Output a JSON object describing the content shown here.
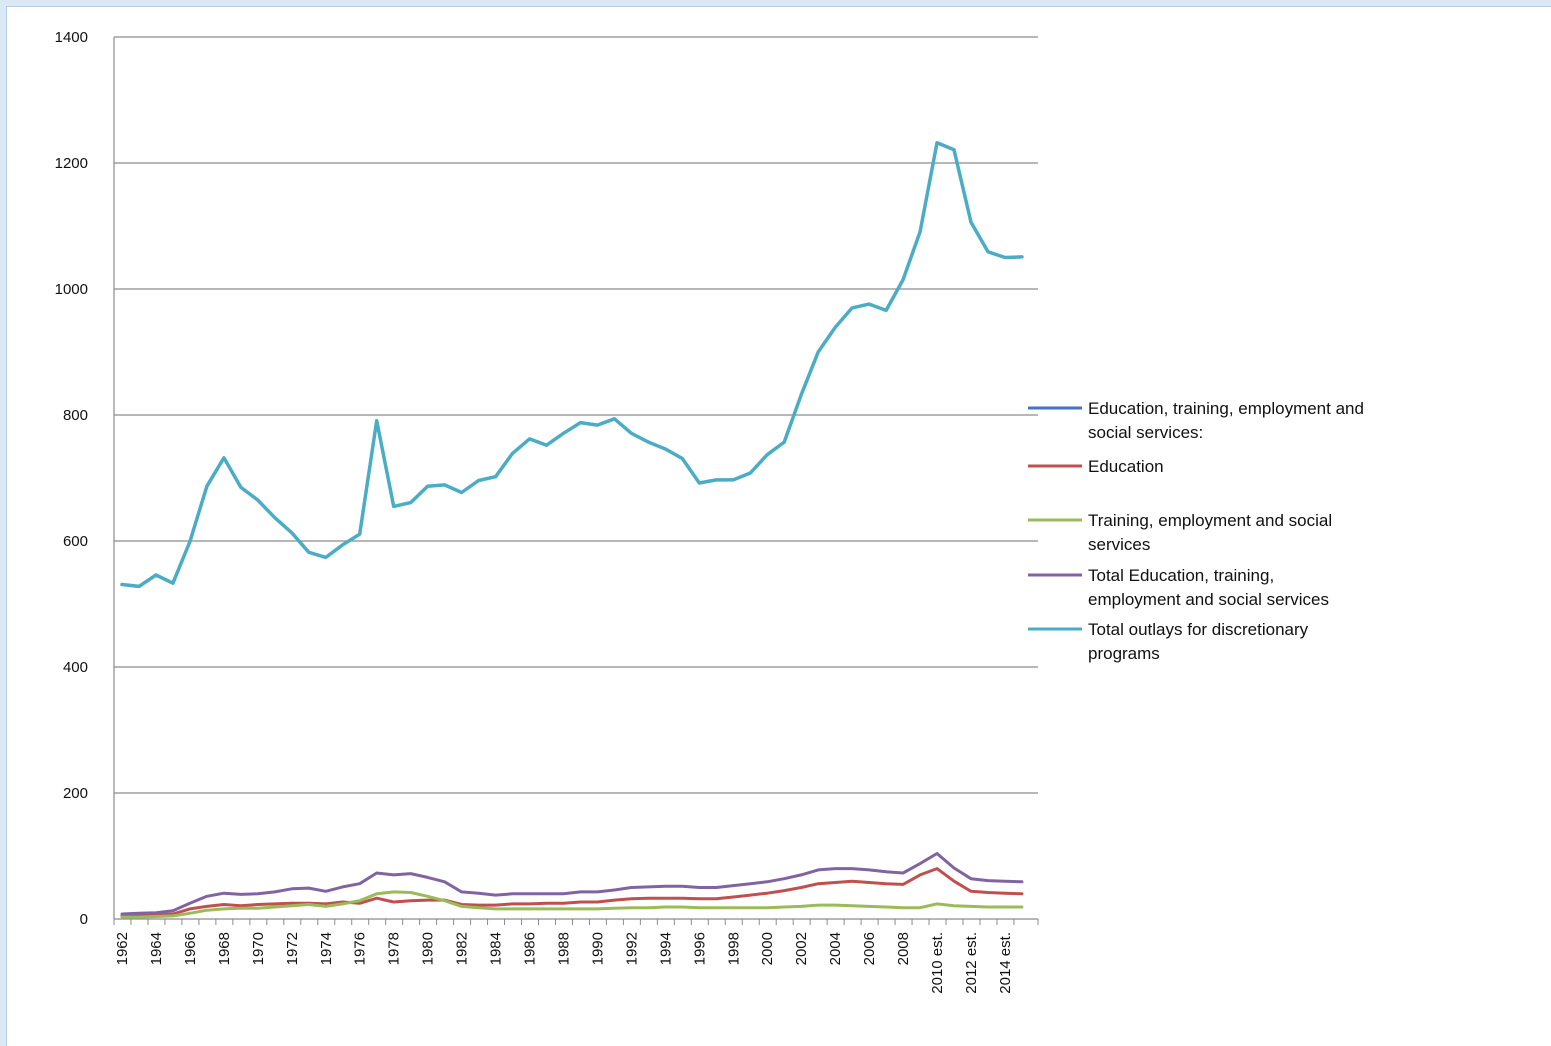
{
  "chart_data": {
    "type": "line",
    "title": "",
    "xlabel": "",
    "ylabel": "",
    "ylim": [
      0,
      1400
    ],
    "yticks": [
      0,
      200,
      400,
      600,
      800,
      1000,
      1200,
      1400
    ],
    "grid": true,
    "legend_position": "right",
    "x": [
      "1962",
      "1963",
      "1964",
      "1965",
      "1966",
      "1967",
      "1968",
      "1969",
      "1970",
      "1971",
      "1972",
      "1973",
      "1974",
      "1975",
      "1976",
      "1977",
      "1978",
      "1979",
      "1980",
      "1981",
      "1982",
      "1983",
      "1984",
      "1985",
      "1986",
      "1987",
      "1988",
      "1989",
      "1990",
      "1991",
      "1992",
      "1993",
      "1994",
      "1995",
      "1996",
      "1997",
      "1998",
      "1999",
      "2000",
      "2001",
      "2002",
      "2003",
      "2004",
      "2005",
      "2006",
      "2007",
      "2008",
      "2009",
      "2010 est.",
      "2011 est.",
      "2012 est.",
      "2013 est.",
      "2014 est.",
      "2015 est."
    ],
    "xtick_labels": [
      "1962",
      "1964",
      "1966",
      "1968",
      "1970",
      "1972",
      "1974",
      "1976",
      "1978",
      "1980",
      "1982",
      "1984",
      "1986",
      "1988",
      "1990",
      "1992",
      "1994",
      "1996",
      "1998",
      "2000",
      "2002",
      "2004",
      "2006",
      "2008",
      "2010 est.",
      "2012 est.",
      "2014 est."
    ],
    "series": [
      {
        "name": "Education, training, employment and social services:",
        "color": "#4472c4",
        "values": [
          null,
          null,
          null,
          null,
          null,
          null,
          null,
          null,
          null,
          null,
          null,
          null,
          null,
          null,
          null,
          null,
          null,
          null,
          null,
          null,
          null,
          null,
          null,
          null,
          null,
          null,
          null,
          null,
          null,
          null,
          null,
          null,
          null,
          null,
          null,
          null,
          null,
          null,
          null,
          null,
          null,
          null,
          null,
          null,
          null,
          null,
          null,
          null,
          null,
          null,
          null,
          null,
          null,
          null
        ]
      },
      {
        "name": "Education",
        "color": "#c0504d",
        "values": [
          5,
          6,
          6,
          8,
          16,
          20,
          23,
          21,
          23,
          24,
          25,
          25,
          24,
          27,
          25,
          33,
          27,
          29,
          30,
          30,
          23,
          22,
          22,
          24,
          24,
          25,
          25,
          27,
          27,
          30,
          32,
          33,
          33,
          33,
          32,
          32,
          35,
          38,
          41,
          45,
          50,
          56,
          58,
          60,
          58,
          56,
          55,
          70,
          80,
          60,
          44,
          42,
          41,
          40
        ]
      },
      {
        "name": "Training, employment and social services",
        "color": "#9bbb59",
        "values": [
          3,
          3,
          4,
          5,
          9,
          14,
          16,
          17,
          17,
          19,
          21,
          23,
          20,
          24,
          29,
          40,
          43,
          42,
          36,
          29,
          20,
          18,
          16,
          16,
          16,
          16,
          16,
          16,
          16,
          17,
          18,
          18,
          19,
          19,
          18,
          18,
          18,
          18,
          18,
          19,
          20,
          22,
          22,
          21,
          20,
          19,
          18,
          18,
          24,
          21,
          20,
          19,
          19,
          19
        ]
      },
      {
        "name": "Total Education, training, employment and social services",
        "color": "#8064a2",
        "values": [
          8,
          9,
          10,
          13,
          25,
          36,
          41,
          39,
          40,
          43,
          48,
          49,
          44,
          51,
          56,
          73,
          70,
          72,
          66,
          59,
          43,
          41,
          38,
          40,
          40,
          40,
          40,
          43,
          43,
          46,
          50,
          51,
          52,
          52,
          50,
          50,
          53,
          56,
          59,
          64,
          70,
          78,
          80,
          80,
          78,
          75,
          73,
          88,
          104,
          81,
          64,
          61,
          60,
          59
        ]
      },
      {
        "name": "Total outlays for discretionary programs",
        "color": "#4bacc6",
        "values": [
          531,
          528,
          546,
          533,
          599,
          687,
          732,
          685,
          665,
          637,
          613,
          582,
          574,
          594,
          611,
          791,
          655,
          661,
          687,
          689,
          677,
          696,
          702,
          739,
          762,
          752,
          771,
          788,
          784,
          794,
          771,
          757,
          746,
          731,
          692,
          697,
          697,
          708,
          737,
          757,
          832,
          900,
          939,
          970,
          976,
          966,
          1015,
          1091,
          1232,
          1221,
          1106,
          1059,
          1050,
          1051
        ]
      }
    ]
  }
}
